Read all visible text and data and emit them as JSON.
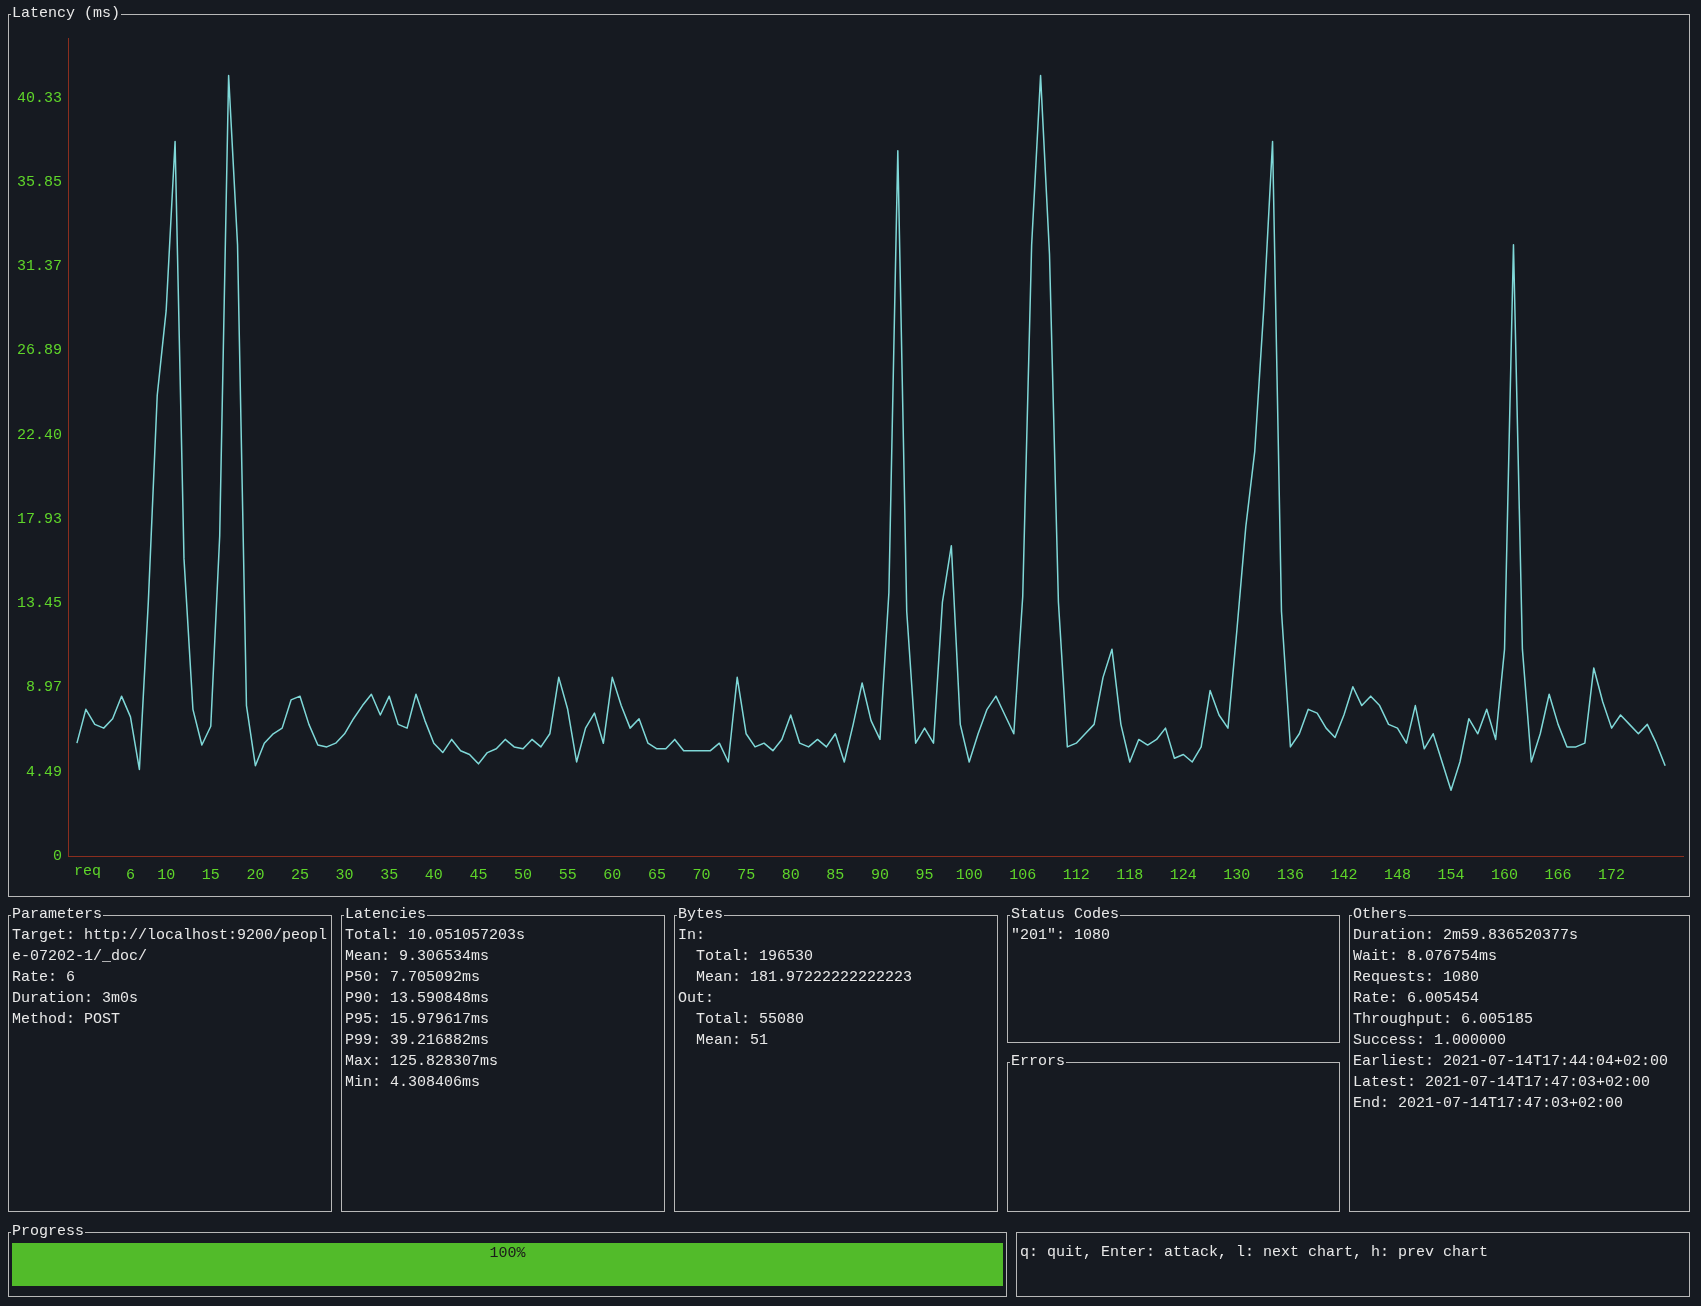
{
  "chart_data": [
    {
      "type": "line",
      "title": "Latency (ms)",
      "xlabel": "req",
      "color": "#7fd8d8",
      "x": [
        0,
        1,
        2,
        3,
        4,
        5,
        6,
        7,
        8,
        9,
        10,
        11,
        12,
        13,
        14,
        15,
        16,
        17,
        18,
        19,
        20,
        21,
        22,
        23,
        24,
        25,
        26,
        27,
        28,
        29,
        30,
        31,
        32,
        33,
        34,
        35,
        36,
        37,
        38,
        39,
        40,
        41,
        42,
        43,
        44,
        45,
        46,
        47,
        48,
        49,
        50,
        51,
        52,
        53,
        54,
        55,
        56,
        57,
        58,
        59,
        60,
        61,
        62,
        63,
        64,
        65,
        66,
        67,
        68,
        69,
        70,
        71,
        72,
        73,
        74,
        75,
        76,
        77,
        78,
        79,
        80,
        81,
        82,
        83,
        84,
        85,
        86,
        87,
        88,
        89,
        90,
        91,
        92,
        93,
        94,
        95,
        96,
        97,
        98,
        99,
        100,
        101,
        102,
        103,
        104,
        105,
        106,
        107,
        108,
        109,
        110,
        111,
        112,
        113,
        114,
        115,
        116,
        117,
        118,
        119,
        120,
        121,
        122,
        123,
        124,
        125,
        126,
        127,
        128,
        129,
        130,
        131,
        132,
        133,
        134,
        135,
        136,
        137,
        138,
        139,
        140,
        141,
        142,
        143,
        144,
        145,
        146,
        147,
        148,
        149,
        150,
        151,
        152,
        153,
        154,
        155,
        156,
        157,
        158,
        159,
        160,
        161,
        162,
        163,
        164,
        165,
        166,
        167,
        168,
        169,
        170,
        171,
        172,
        173,
        174,
        175,
        176,
        177,
        178
      ],
      "values": [
        6.0,
        7.8,
        7.0,
        6.8,
        7.3,
        8.5,
        7.4,
        4.6,
        13.5,
        24.5,
        29.0,
        38.0,
        15.8,
        7.8,
        5.9,
        6.9,
        17.0,
        41.5,
        32.5,
        8.0,
        4.8,
        6.0,
        6.5,
        6.8,
        8.3,
        8.5,
        7.0,
        5.9,
        5.8,
        6.0,
        6.5,
        7.3,
        8.0,
        8.6,
        7.5,
        8.5,
        7.0,
        6.8,
        8.6,
        7.2,
        6.0,
        5.5,
        6.2,
        5.6,
        5.4,
        4.9,
        5.5,
        5.7,
        6.2,
        5.8,
        5.7,
        6.2,
        5.8,
        6.5,
        9.5,
        7.8,
        5.0,
        6.8,
        7.6,
        6.0,
        9.5,
        8.0,
        6.8,
        7.3,
        6.0,
        5.7,
        5.7,
        6.2,
        5.6,
        5.6,
        5.6,
        5.6,
        6.0,
        5.0,
        9.5,
        6.5,
        5.8,
        6.0,
        5.6,
        6.2,
        7.5,
        6.0,
        5.8,
        6.2,
        5.8,
        6.5,
        5.0,
        7.0,
        9.2,
        7.2,
        6.2,
        14.0,
        37.5,
        13.0,
        6.0,
        6.8,
        6.0,
        13.5,
        16.5,
        7.0,
        5.0,
        6.5,
        7.8,
        8.5,
        7.5,
        6.5,
        13.8,
        32.5,
        41.5,
        32.0,
        13.5,
        5.8,
        6.0,
        6.5,
        7.0,
        9.5,
        11.0,
        7.0,
        5.0,
        6.2,
        5.9,
        6.2,
        6.8,
        5.2,
        5.4,
        5.0,
        5.8,
        8.8,
        7.5,
        6.8,
        12.0,
        17.5,
        21.5,
        29.0,
        38.0,
        13.0,
        5.8,
        6.5,
        7.8,
        7.6,
        6.8,
        6.3,
        7.5,
        9.0,
        8.0,
        8.5,
        8.0,
        7.0,
        6.8,
        6.0,
        8.0,
        5.7,
        6.5,
        5.0,
        3.5,
        5.0,
        7.3,
        6.5,
        7.8,
        6.2,
        11.0,
        32.5,
        11.0,
        5.0,
        6.5,
        8.6,
        7.0,
        5.8,
        5.8,
        6.0,
        10.0,
        8.2,
        6.8,
        7.5,
        7.0,
        6.5,
        7.0,
        6.0,
        4.8
      ],
      "xlim": [
        -1,
        180
      ],
      "xticks": [
        6,
        10,
        15,
        20,
        25,
        30,
        35,
        40,
        45,
        50,
        55,
        60,
        65,
        70,
        75,
        80,
        85,
        90,
        95,
        100,
        106,
        112,
        118,
        124,
        130,
        136,
        142,
        148,
        154,
        160,
        166,
        172
      ],
      "ylim": [
        0,
        43.5
      ],
      "yticks": [
        {
          "value": 0,
          "label": "0"
        },
        4.49,
        8.97,
        13.45,
        17.93,
        {
          "value": 22.4,
          "label": "22.40"
        },
        26.89,
        31.37,
        35.85,
        40.33
      ]
    },
    {
      "type": "other",
      "title": "Parameters",
      "annotations": [
        "Target: http://localhost:9200/people-07202-1/_doc/",
        "Rate: 6",
        "Duration: 3m0s",
        "Method: POST"
      ]
    },
    {
      "type": "other",
      "title": "Latencies",
      "annotations": [
        "Total: 10.051057203s",
        "Mean: 9.306534ms",
        "P50: 7.705092ms",
        "P90: 13.590848ms",
        "P95: 15.979617ms",
        "P99: 39.216882ms",
        "Max: 125.828307ms",
        "Min: 4.308406ms"
      ]
    },
    {
      "type": "other",
      "title": "Bytes",
      "annotations": [
        "In:",
        "  Total: 196530",
        "  Mean: 181.97222222222223",
        "Out:",
        "  Total: 55080",
        "  Mean: 51"
      ]
    },
    {
      "type": "other",
      "title": "Status Codes",
      "annotations": [
        "\"201\": 1080"
      ]
    },
    {
      "type": "other",
      "title": "Errors"
    },
    {
      "type": "other",
      "title": "Others",
      "annotations": [
        "Duration: 2m59.836520377s",
        "Wait: 8.076754ms",
        "Requests: 1080",
        "Rate: 6.005454",
        "Throughput: 6.005185",
        "Success: 1.000000",
        "Earliest: 2021-07-14T17:44:04+02:00",
        "Latest: 2021-07-14T17:47:03+02:00",
        "End: 2021-07-14T17:47:03+02:00"
      ]
    },
    {
      "type": "other",
      "title": "Progress",
      "color": "#52bb2a",
      "annotations": [
        "100%"
      ]
    },
    {
      "type": "other",
      "annotations": [
        "q: quit, Enter: attack, l: next chart, h: prev chart"
      ]
    }
  ]
}
